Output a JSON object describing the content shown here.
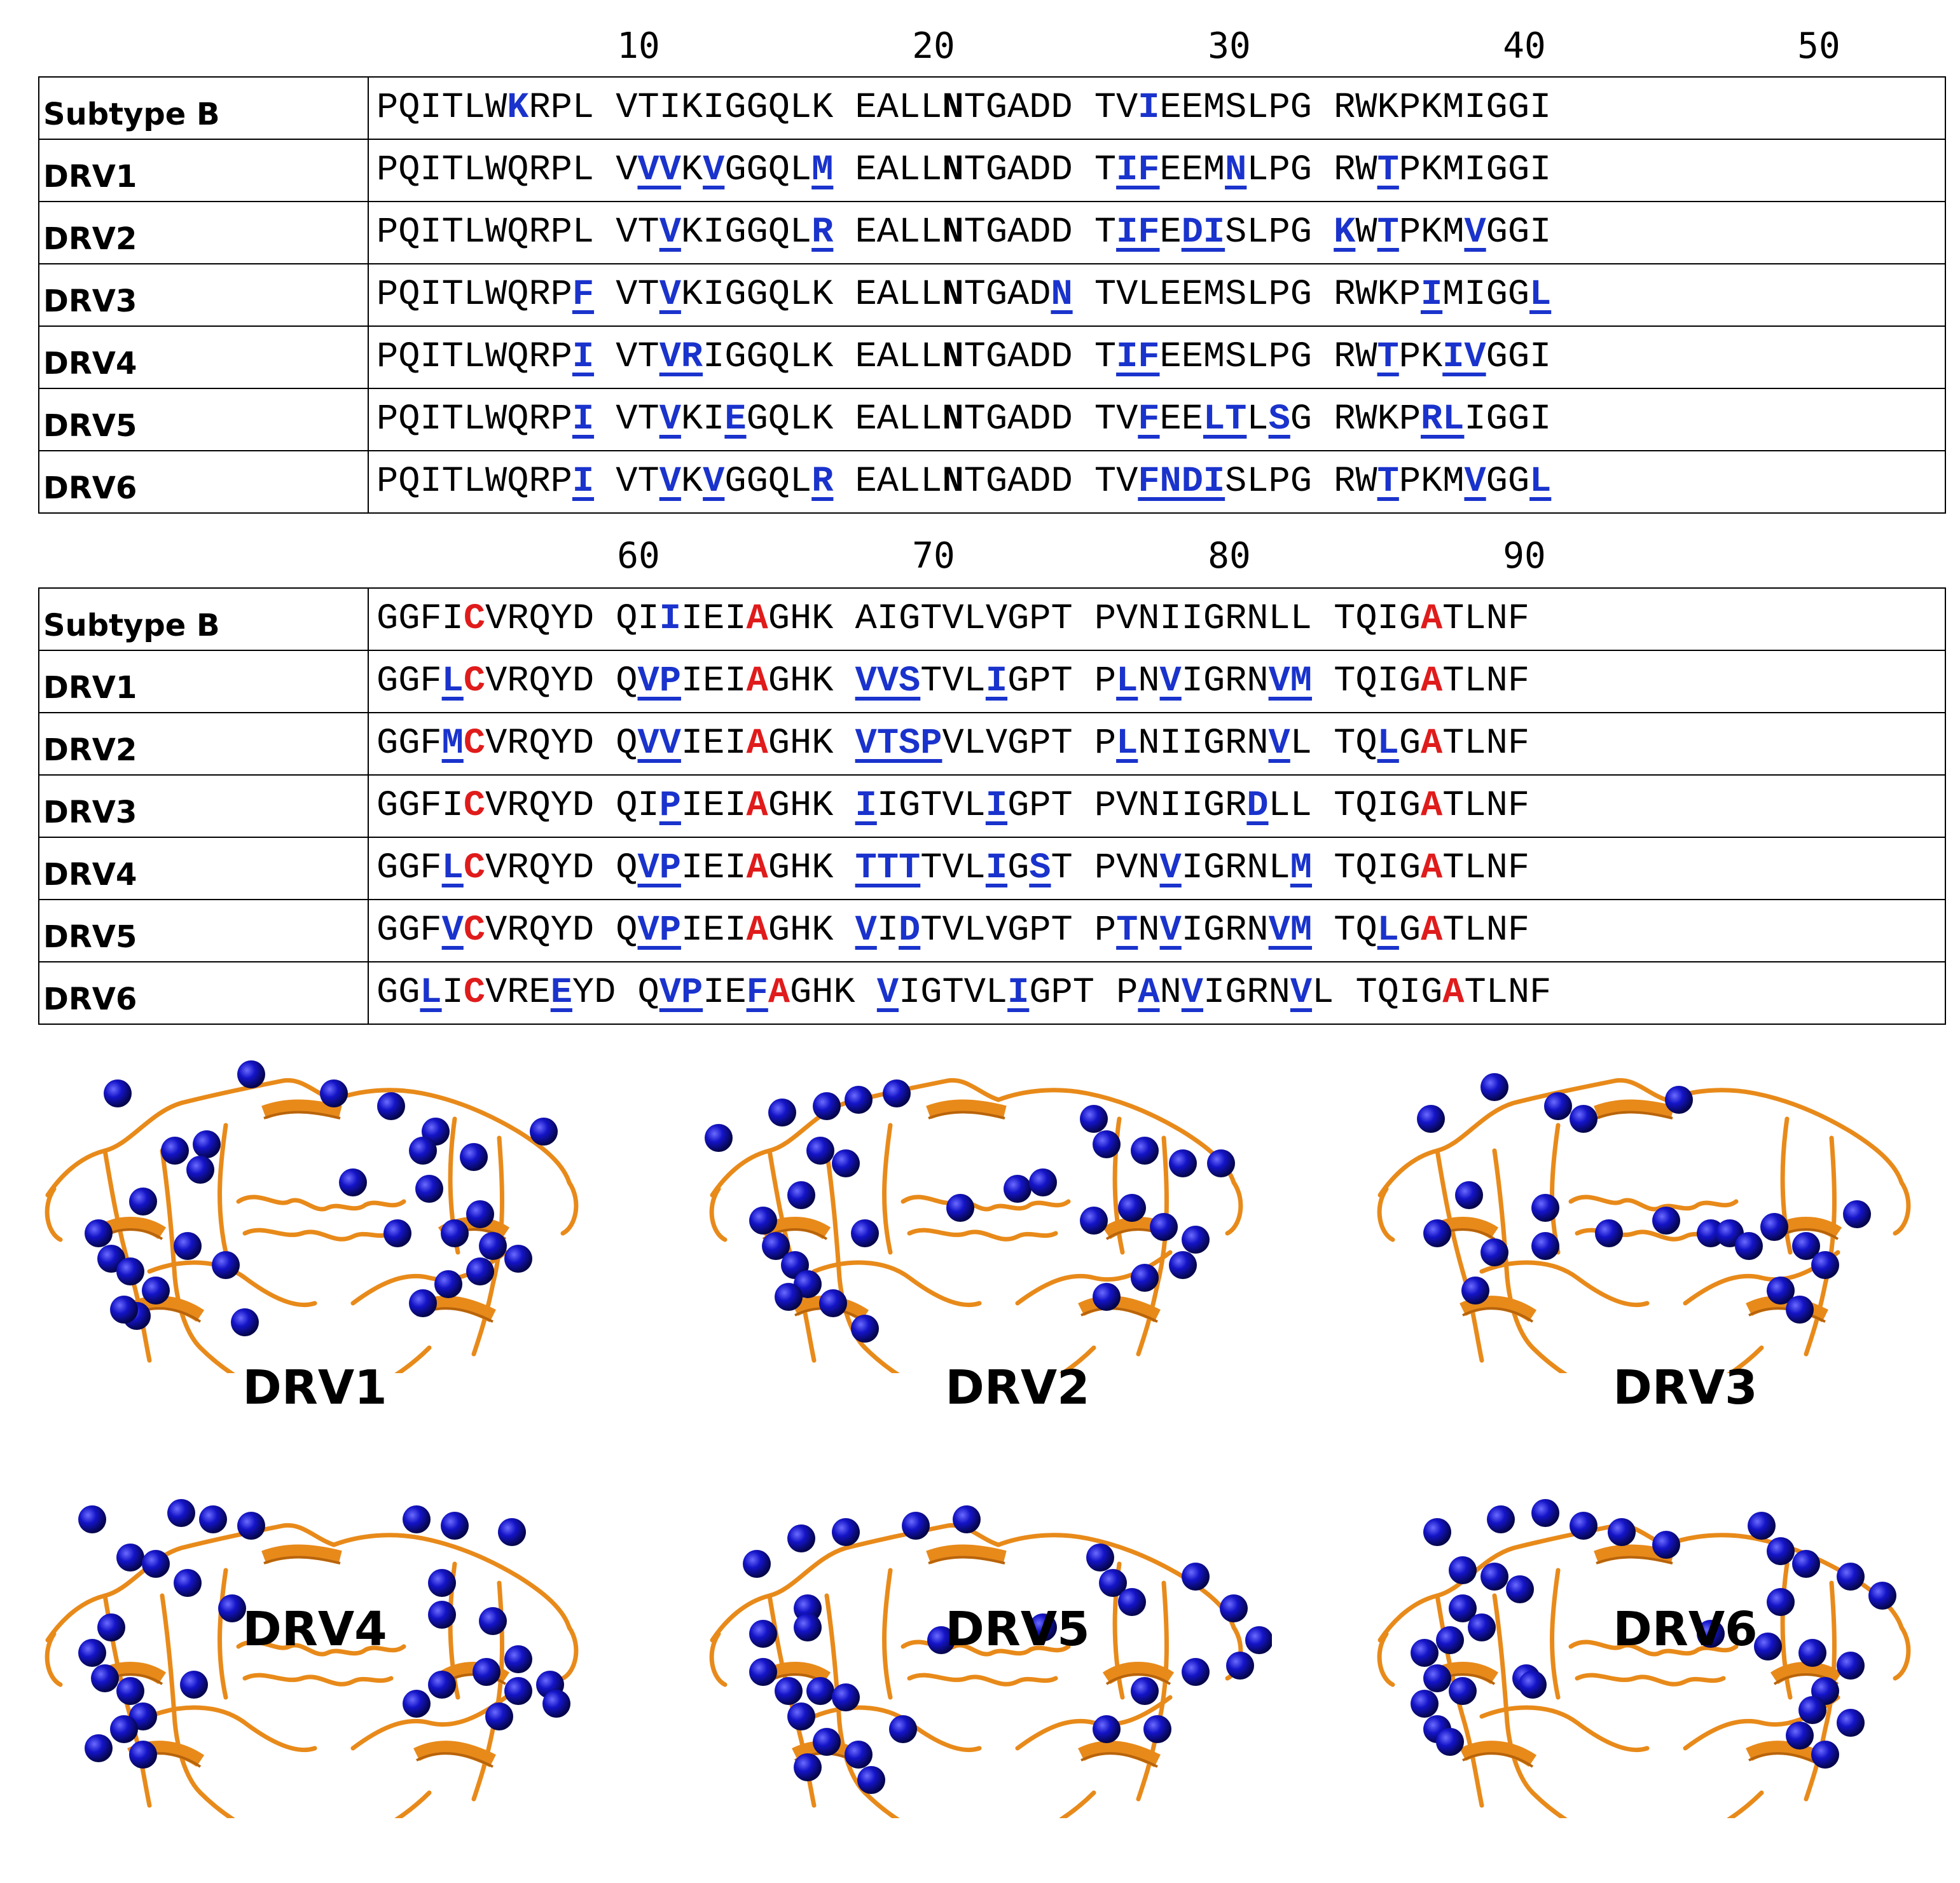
{
  "ruler_top": [
    "10",
    "20",
    "30",
    "40",
    "50"
  ],
  "ruler_bottom": [
    "60",
    "70",
    "80",
    "90"
  ],
  "block1_rows": [
    {
      "label": "Subtype B",
      "segs": [
        [
          "PQITLW",
          ""
        ],
        [
          "K",
          "b"
        ],
        [
          "RPL VTIKIGGQLK EALL",
          ""
        ],
        [
          "N",
          "k"
        ],
        [
          "TGADD TV",
          ""
        ],
        [
          "I",
          "b"
        ],
        [
          "EEMSLPG RWKPKMIGGI",
          ""
        ]
      ]
    },
    {
      "label": "DRV1",
      "segs": [
        [
          "PQITLWQRPL V",
          ""
        ],
        [
          "VV",
          "m"
        ],
        [
          "K",
          ""
        ],
        [
          "V",
          "m"
        ],
        [
          "GGQL",
          ""
        ],
        [
          "M",
          "m"
        ],
        [
          " EALL",
          ""
        ],
        [
          "N",
          "k"
        ],
        [
          "TGADD T",
          ""
        ],
        [
          "IF",
          "m"
        ],
        [
          "EEM",
          ""
        ],
        [
          "N",
          "m"
        ],
        [
          "LPG RW",
          ""
        ],
        [
          "T",
          "m"
        ],
        [
          "PKMIGGI",
          ""
        ]
      ]
    },
    {
      "label": "DRV2",
      "segs": [
        [
          "PQITLWQRPL VT",
          ""
        ],
        [
          "V",
          "m"
        ],
        [
          "KIGGQL",
          ""
        ],
        [
          "R",
          "m"
        ],
        [
          " EALL",
          ""
        ],
        [
          "N",
          "k"
        ],
        [
          "TGADD T",
          ""
        ],
        [
          "IF",
          "m"
        ],
        [
          "E",
          ""
        ],
        [
          "DI",
          "m"
        ],
        [
          "SLPG ",
          ""
        ],
        [
          "K",
          "m"
        ],
        [
          "W",
          ""
        ],
        [
          "T",
          "m"
        ],
        [
          "PKM",
          ""
        ],
        [
          "V",
          "m"
        ],
        [
          "GGI",
          ""
        ]
      ]
    },
    {
      "label": "DRV3",
      "segs": [
        [
          "PQITLWQRP",
          ""
        ],
        [
          "F",
          "m"
        ],
        [
          " VT",
          ""
        ],
        [
          "V",
          "m"
        ],
        [
          "KIGGQLK EALL",
          ""
        ],
        [
          "N",
          "k"
        ],
        [
          "TGAD",
          ""
        ],
        [
          "N",
          "m"
        ],
        [
          " TVLEEMSLPG RWKP",
          ""
        ],
        [
          "I",
          "m"
        ],
        [
          "MIGG",
          ""
        ],
        [
          "L",
          "m"
        ]
      ]
    },
    {
      "label": "DRV4",
      "segs": [
        [
          "PQITLWQRP",
          ""
        ],
        [
          "I",
          "m"
        ],
        [
          " VT",
          ""
        ],
        [
          "VR",
          "m"
        ],
        [
          "IGGQLK EALL",
          ""
        ],
        [
          "N",
          "k"
        ],
        [
          "TGADD T",
          ""
        ],
        [
          "IF",
          "m"
        ],
        [
          "EEMSLPG RW",
          ""
        ],
        [
          "T",
          "m"
        ],
        [
          "PK",
          ""
        ],
        [
          "IV",
          "m"
        ],
        [
          "GGI",
          ""
        ]
      ]
    },
    {
      "label": "DRV5",
      "segs": [
        [
          "PQITLWQRP",
          ""
        ],
        [
          "I",
          "m"
        ],
        [
          " VT",
          ""
        ],
        [
          "V",
          "m"
        ],
        [
          "KI",
          ""
        ],
        [
          "E",
          "m"
        ],
        [
          "GQLK EALL",
          ""
        ],
        [
          "N",
          "k"
        ],
        [
          "TGADD TV",
          ""
        ],
        [
          "F",
          "m"
        ],
        [
          "EE",
          ""
        ],
        [
          "LT",
          "m"
        ],
        [
          "L",
          ""
        ],
        [
          "S",
          "m"
        ],
        [
          "G RWKP",
          ""
        ],
        [
          "RL",
          "m"
        ],
        [
          "IGGI",
          ""
        ]
      ]
    },
    {
      "label": "DRV6",
      "segs": [
        [
          "PQITLWQRP",
          ""
        ],
        [
          "I",
          "m"
        ],
        [
          " VT",
          ""
        ],
        [
          "V",
          "m"
        ],
        [
          "K",
          ""
        ],
        [
          "V",
          "m"
        ],
        [
          "GGQL",
          ""
        ],
        [
          "R",
          "m"
        ],
        [
          " EALL",
          ""
        ],
        [
          "N",
          "k"
        ],
        [
          "TGADD TV",
          ""
        ],
        [
          "FNDI",
          "m"
        ],
        [
          "SLPG RW",
          ""
        ],
        [
          "T",
          "m"
        ],
        [
          "PKM",
          ""
        ],
        [
          "V",
          "m"
        ],
        [
          "GG",
          ""
        ],
        [
          "L",
          "m"
        ]
      ]
    }
  ],
  "block2_rows": [
    {
      "label": "Subtype B",
      "segs": [
        [
          "GGFI",
          ""
        ],
        [
          "C",
          "r"
        ],
        [
          "VRQYD QI",
          ""
        ],
        [
          "I",
          "b"
        ],
        [
          "IEI",
          ""
        ],
        [
          "A",
          "r"
        ],
        [
          "GHK AIGTVLVGPT PVNIIGRNLL TQIG",
          ""
        ],
        [
          "A",
          "r"
        ],
        [
          "TLNF",
          ""
        ]
      ]
    },
    {
      "label": "DRV1",
      "segs": [
        [
          "GGF",
          ""
        ],
        [
          "L",
          "m"
        ],
        [
          "C",
          "r"
        ],
        [
          "VRQYD Q",
          ""
        ],
        [
          "VP",
          "m"
        ],
        [
          "IEI",
          ""
        ],
        [
          "A",
          "r"
        ],
        [
          "GHK ",
          ""
        ],
        [
          "VVS",
          "m"
        ],
        [
          "TVL",
          ""
        ],
        [
          "I",
          "m"
        ],
        [
          "GPT P",
          ""
        ],
        [
          "L",
          "m"
        ],
        [
          "N",
          ""
        ],
        [
          "V",
          "m"
        ],
        [
          "IGRN",
          ""
        ],
        [
          "VM",
          "m"
        ],
        [
          " TQIG",
          ""
        ],
        [
          "A",
          "r"
        ],
        [
          "TLNF",
          ""
        ]
      ]
    },
    {
      "label": "DRV2",
      "segs": [
        [
          "GGF",
          ""
        ],
        [
          "M",
          "m"
        ],
        [
          "C",
          "r"
        ],
        [
          "VRQYD Q",
          ""
        ],
        [
          "VV",
          "m"
        ],
        [
          "IEI",
          ""
        ],
        [
          "A",
          "r"
        ],
        [
          "GHK ",
          ""
        ],
        [
          "VTSP",
          "m"
        ],
        [
          "VLVGPT P",
          ""
        ],
        [
          "L",
          "m"
        ],
        [
          "NIIGRN",
          ""
        ],
        [
          "V",
          "m"
        ],
        [
          "L TQ",
          ""
        ],
        [
          "L",
          "m"
        ],
        [
          "G",
          ""
        ],
        [
          "A",
          "r"
        ],
        [
          "TLNF",
          ""
        ]
      ]
    },
    {
      "label": "DRV3",
      "segs": [
        [
          "GGFI",
          ""
        ],
        [
          "C",
          "r"
        ],
        [
          "VRQYD QI",
          ""
        ],
        [
          "P",
          "m"
        ],
        [
          "IEI",
          ""
        ],
        [
          "A",
          "r"
        ],
        [
          "GHK ",
          ""
        ],
        [
          "I",
          "m"
        ],
        [
          "IGTVL",
          ""
        ],
        [
          "I",
          "m"
        ],
        [
          "GPT PVNIIGR",
          ""
        ],
        [
          "D",
          "m"
        ],
        [
          "LL TQIG",
          ""
        ],
        [
          "A",
          "r"
        ],
        [
          "TLNF",
          ""
        ]
      ]
    },
    {
      "label": "DRV4",
      "segs": [
        [
          "GGF",
          ""
        ],
        [
          "L",
          "m"
        ],
        [
          "C",
          "r"
        ],
        [
          "VRQYD Q",
          ""
        ],
        [
          "VP",
          "m"
        ],
        [
          "IEI",
          ""
        ],
        [
          "A",
          "r"
        ],
        [
          "GHK ",
          ""
        ],
        [
          "TTT",
          "m"
        ],
        [
          "TVL",
          ""
        ],
        [
          "I",
          "m"
        ],
        [
          "G",
          ""
        ],
        [
          "S",
          "m"
        ],
        [
          "T PVN",
          ""
        ],
        [
          "V",
          "m"
        ],
        [
          "IGRNL",
          ""
        ],
        [
          "M",
          "m"
        ],
        [
          " TQIG",
          ""
        ],
        [
          "A",
          "r"
        ],
        [
          "TLNF",
          ""
        ]
      ]
    },
    {
      "label": "DRV5",
      "segs": [
        [
          "GGF",
          ""
        ],
        [
          "V",
          "m"
        ],
        [
          "C",
          "r"
        ],
        [
          "VRQYD Q",
          ""
        ],
        [
          "VP",
          "m"
        ],
        [
          "IEI",
          ""
        ],
        [
          "A",
          "r"
        ],
        [
          "GHK ",
          ""
        ],
        [
          "V",
          "m"
        ],
        [
          "I",
          ""
        ],
        [
          "D",
          "m"
        ],
        [
          "TVLVGPT P",
          ""
        ],
        [
          "T",
          "m"
        ],
        [
          "N",
          ""
        ],
        [
          "V",
          "m"
        ],
        [
          "IGRN",
          ""
        ],
        [
          "VM",
          "m"
        ],
        [
          " TQ",
          ""
        ],
        [
          "L",
          "m"
        ],
        [
          "G",
          ""
        ],
        [
          "A",
          "r"
        ],
        [
          "TLNF",
          ""
        ]
      ]
    },
    {
      "label": "DRV6",
      "segs": [
        [
          "GG",
          ""
        ],
        [
          "L",
          "m"
        ],
        [
          "I",
          ""
        ],
        [
          "C",
          "r"
        ],
        [
          "VRE",
          ""
        ],
        [
          "E",
          "m"
        ],
        [
          "YD Q",
          ""
        ],
        [
          "VP",
          "m"
        ],
        [
          "IE",
          ""
        ],
        [
          "F",
          "m"
        ],
        [
          "A",
          "r"
        ],
        [
          "GHK ",
          ""
        ],
        [
          "V",
          "m"
        ],
        [
          "IGTVL",
          ""
        ],
        [
          "I",
          "m"
        ],
        [
          "GPT P",
          ""
        ],
        [
          "A",
          "m"
        ],
        [
          "N",
          ""
        ],
        [
          "V",
          "m"
        ],
        [
          "IGRN",
          ""
        ],
        [
          "V",
          "m"
        ],
        [
          "L TQIG",
          ""
        ],
        [
          "A",
          "r"
        ],
        [
          "TLNF",
          ""
        ]
      ]
    }
  ],
  "structure_labels": [
    "DRV1",
    "DRV2",
    "DRV3",
    "DRV4",
    "DRV5",
    "DRV6"
  ],
  "colors": {
    "ribbon": "#e88a1a",
    "ribbon_dark": "#b8640c",
    "sphere": "#1414c8",
    "mutation": "#1a33cc",
    "conserved": "#e01b1b"
  }
}
